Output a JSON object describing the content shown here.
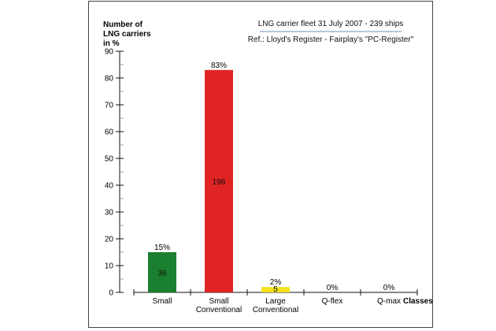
{
  "chart_data": {
    "type": "bar",
    "title": "LNG carrier fleet 31 July 2007 - 239 ships",
    "subtitle": "Ref.: Lloyd's Register - Fairplay's \"PC-Register\"",
    "ylabel": [
      "Number of",
      "LNG carriers",
      "in %"
    ],
    "xlabel": "Classes",
    "categories": [
      [
        "Small"
      ],
      [
        "Small",
        "Conventional"
      ],
      [
        "Large",
        "Conventional"
      ],
      [
        "Q-flex"
      ],
      [
        "Q-max"
      ]
    ],
    "values": [
      15,
      83,
      2,
      0,
      0
    ],
    "value_labels": [
      "15%",
      "83%",
      "2%",
      "0%",
      "0%"
    ],
    "counts": [
      "36",
      "198",
      "5",
      "",
      ""
    ],
    "colors": [
      "#1a7f2e",
      "#e02424",
      "#f2e21a",
      "#888888",
      "#888888"
    ],
    "ylim": [
      0,
      90
    ],
    "yticks": [
      0,
      10,
      20,
      30,
      40,
      50,
      60,
      70,
      80,
      90
    ],
    "grid": false,
    "legend": "none"
  }
}
